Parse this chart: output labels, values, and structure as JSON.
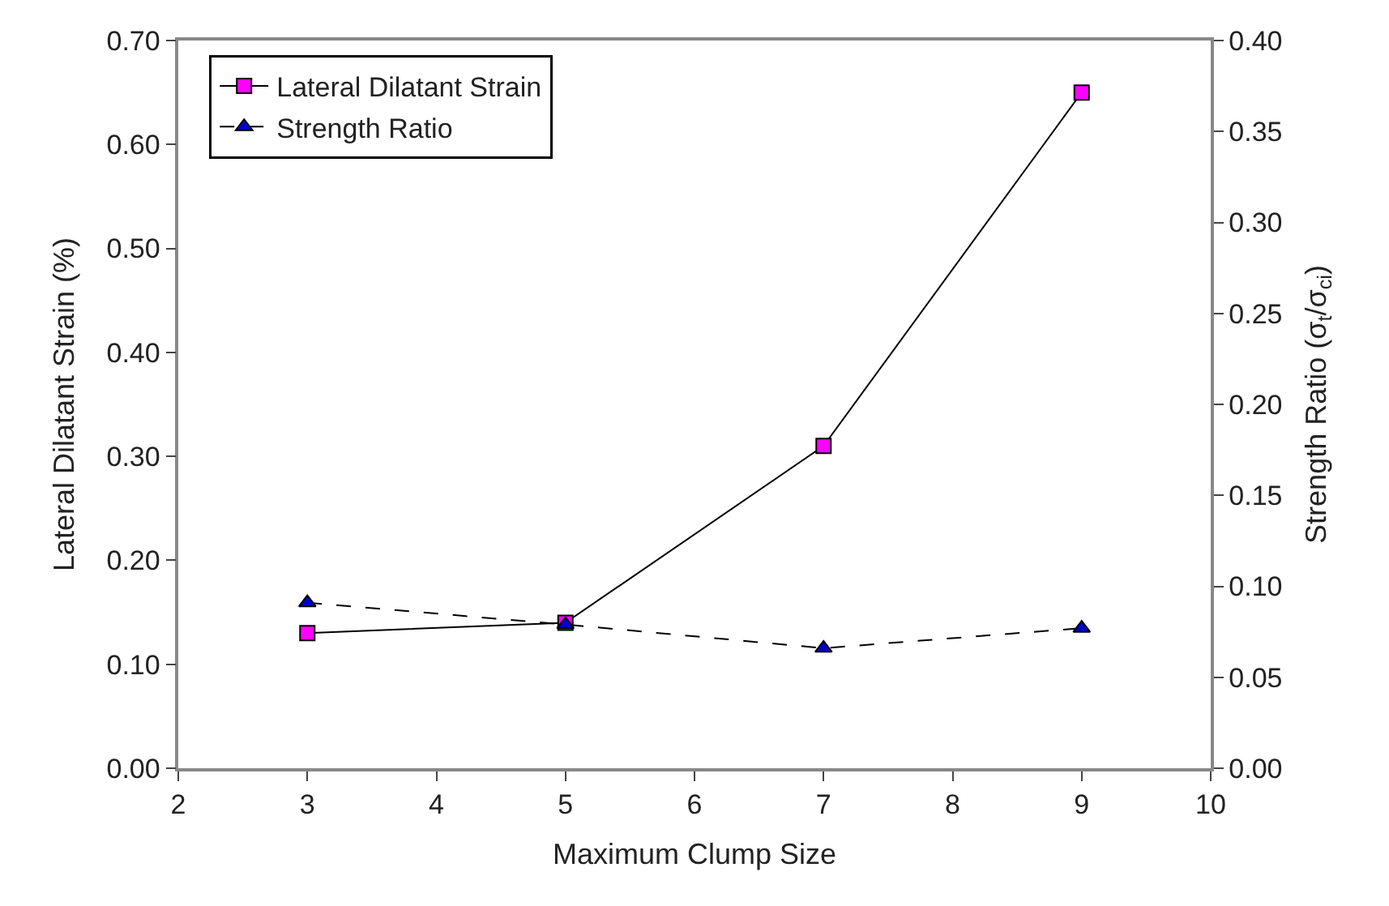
{
  "chart_data": {
    "type": "line",
    "xlabel": "Maximum Clump Size",
    "ylabel": "Lateral Dilatant Strain (%)",
    "y2label": "Strength Ratio (σ$_{t}$/σ$_{ci}$)",
    "x": [
      3,
      5,
      7,
      9
    ],
    "xlim": [
      2,
      10
    ],
    "xticks": [
      2,
      3,
      4,
      5,
      6,
      7,
      8,
      9,
      10
    ],
    "ylim": [
      0,
      0.7
    ],
    "yticks": [
      {
        "value": 0,
        "label": "0.00"
      },
      {
        "value": 0.1,
        "label": "0.10"
      },
      {
        "value": 0.2,
        "label": "0.20"
      },
      {
        "value": 0.3,
        "label": "0.30"
      },
      {
        "value": 0.4,
        "label": "0.40"
      },
      {
        "value": 0.5,
        "label": "0.50"
      },
      {
        "value": 0.6,
        "label": "0.60"
      },
      {
        "value": 0.7,
        "label": "0.70"
      }
    ],
    "y2lim": [
      0,
      0.4
    ],
    "y2ticks": [
      {
        "value": 0,
        "label": "0.00"
      },
      {
        "value": 0.05,
        "label": "0.05"
      },
      {
        "value": 0.1,
        "label": "0.10"
      },
      {
        "value": 0.15,
        "label": "0.15"
      },
      {
        "value": 0.2,
        "label": "0.20"
      },
      {
        "value": 0.25,
        "label": "0.25"
      },
      {
        "value": 0.3,
        "label": "0.30"
      },
      {
        "value": 0.35,
        "label": "0.35"
      },
      {
        "value": 0.4,
        "label": "0.40"
      }
    ],
    "legend": "top left",
    "series": [
      {
        "name": "Lateral Dilatant Strain",
        "color": "#ff00ff",
        "values": [
          0.13,
          0.14,
          0.31,
          0.65
        ],
        "marker": "square",
        "line_style": "solid"
      },
      {
        "name": "Strength Ratio",
        "color": "#0000cc",
        "values": [
          0.091,
          0.079,
          0.066,
          0.077
        ],
        "marker": "triangle",
        "line_style": "dashed",
        "axis": "y2"
      }
    ]
  }
}
